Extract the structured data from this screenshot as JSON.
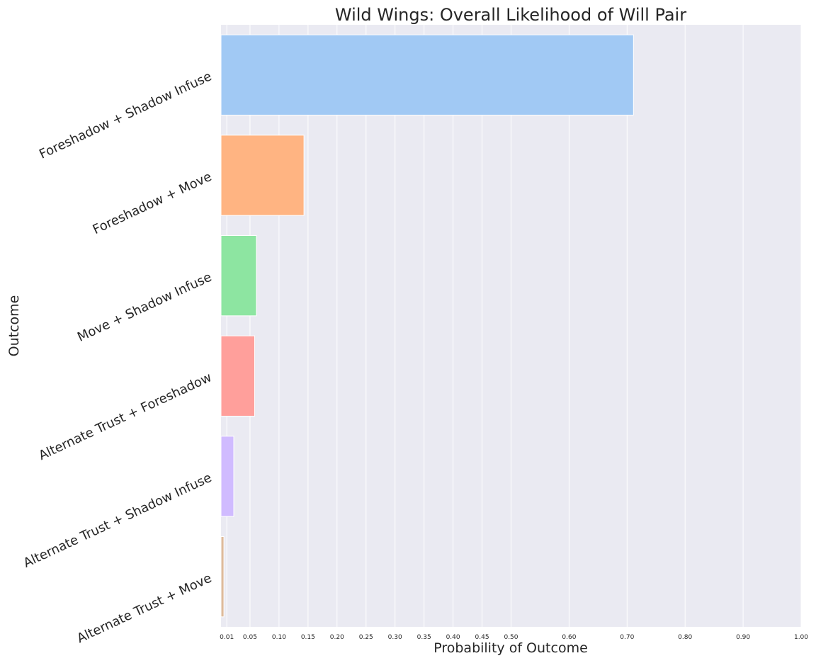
{
  "chart_data": {
    "type": "bar",
    "orientation": "horizontal",
    "title": "Wild Wings: Overall Likelihood of Will Pair",
    "xlabel": "Probability of Outcome",
    "ylabel": "Outcome",
    "xlim": [
      0,
      1.0
    ],
    "xticks": [
      0.01,
      0.05,
      0.1,
      0.15,
      0.2,
      0.25,
      0.3,
      0.35,
      0.4,
      0.45,
      0.5,
      0.6,
      0.7,
      0.8,
      0.9,
      1.0
    ],
    "xtick_labels": [
      "0.01",
      "0.05",
      "0.10",
      "0.15",
      "0.20",
      "0.25",
      "0.30",
      "0.35",
      "0.40",
      "0.45",
      "0.50",
      "0.60",
      "0.70",
      "0.80",
      "0.90",
      "1.00"
    ],
    "categories": [
      "Foreshadow + Shadow Infuse",
      "Foreshadow + Move",
      "Move + Shadow Infuse",
      "Alternate Trust + Foreshadow",
      "Alternate Trust + Shadow Infuse",
      "Alternate Trust + Move"
    ],
    "values": [
      0.711,
      0.143,
      0.061,
      0.058,
      0.022,
      0.005
    ],
    "colors": [
      "#a1c9f4",
      "#ffb482",
      "#8de5a1",
      "#ff9f9b",
      "#d0bbff",
      "#debb9b"
    ],
    "grid": true,
    "legend": "none",
    "style": {
      "plot_background": "#eaeaf2",
      "grid_color": "#ffffff",
      "text_color": "#262626"
    }
  }
}
